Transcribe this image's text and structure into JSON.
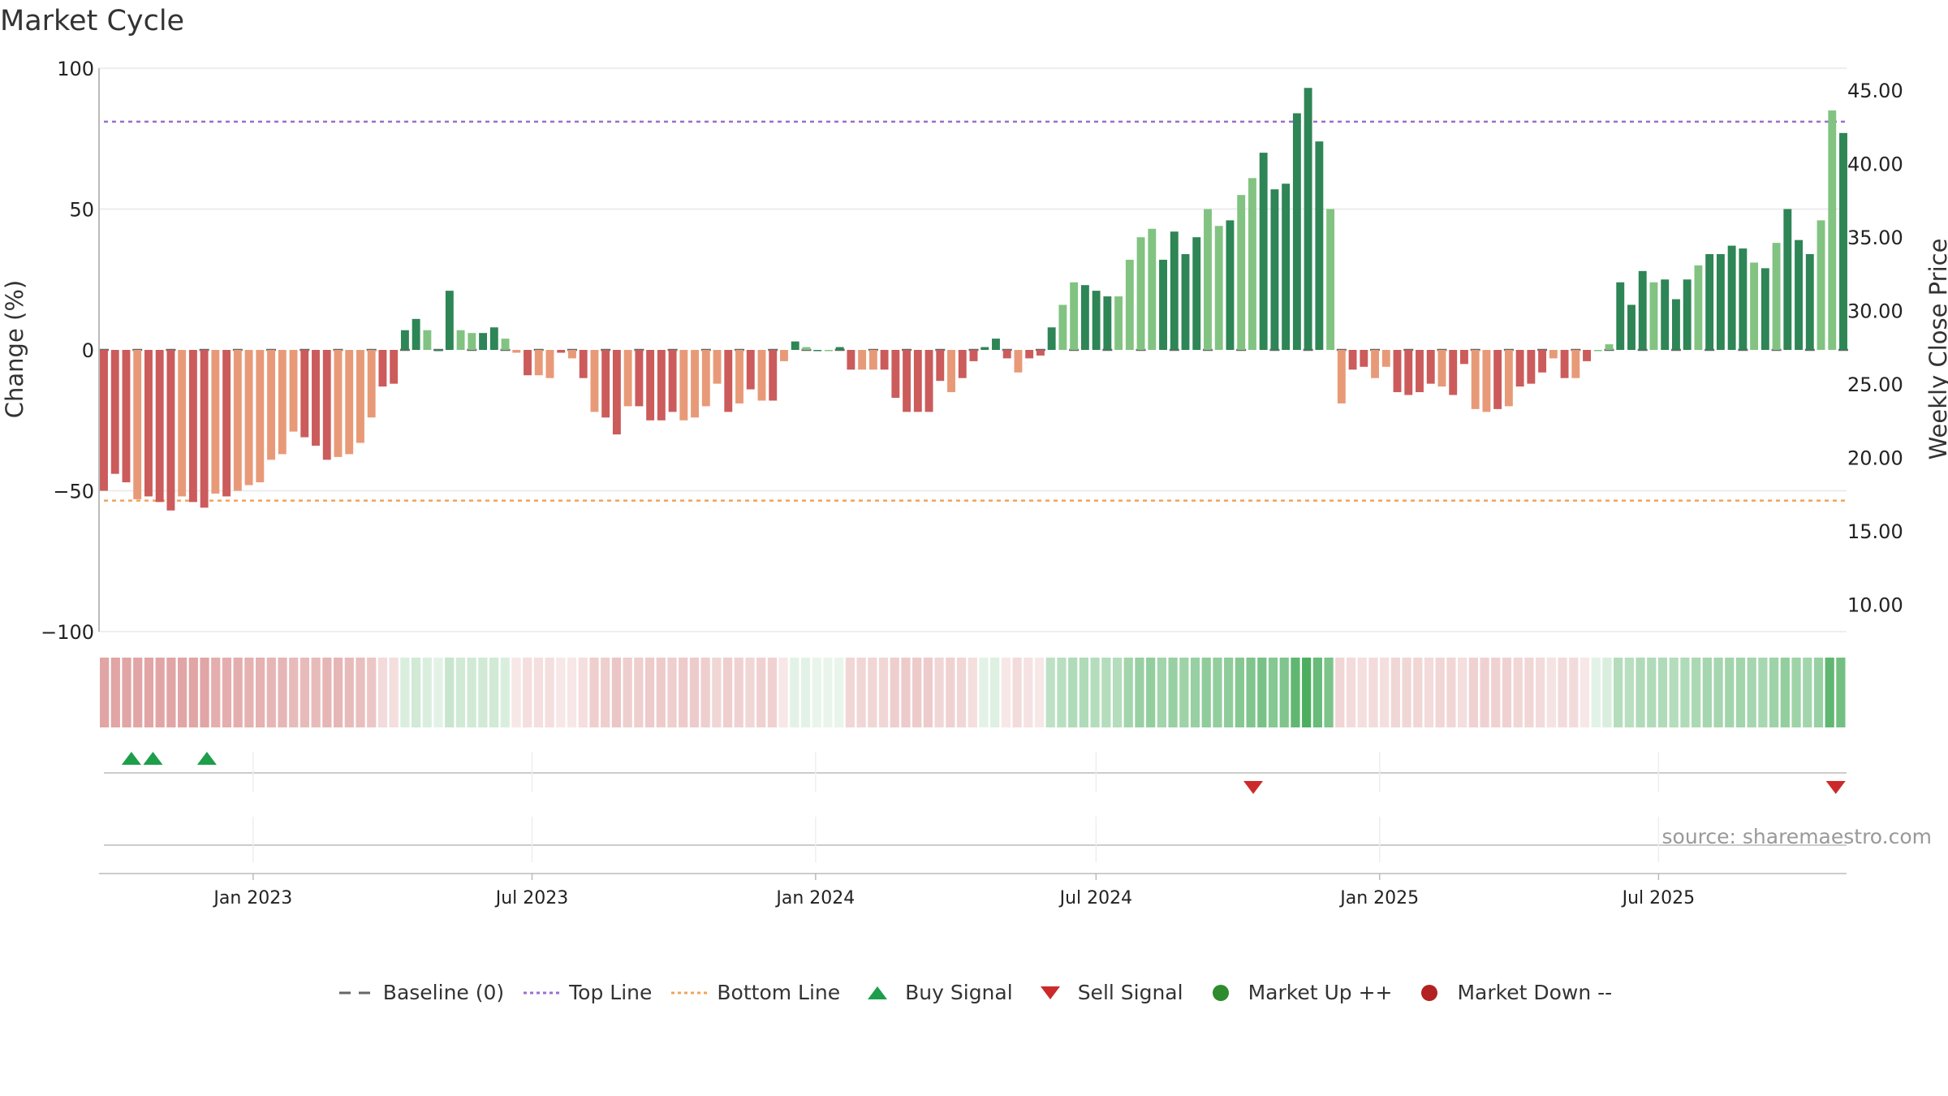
{
  "title": "Market Cycle",
  "source": "source: sharemaestro.com",
  "colors": {
    "up_strong": "#2e8555",
    "up_light": "#82c382",
    "down_strong": "#cc5b5b",
    "down_light": "#e89a78",
    "top_line": "#9b6fcf",
    "bottom_line": "#f0a45a",
    "buy": "#1e9e4a",
    "sell": "#cc2a2a",
    "market_up": "#2e8b2e",
    "market_down": "#b22222",
    "baseline": "#666666"
  },
  "legend": [
    {
      "key": "baseline",
      "label": "Baseline (0)",
      "icon": "dash-line-icon"
    },
    {
      "key": "top_line",
      "label": "Top Line",
      "icon": "dotted-line-icon"
    },
    {
      "key": "bottom_line",
      "label": "Bottom Line",
      "icon": "dotted-line-icon"
    },
    {
      "key": "buy",
      "label": "Buy Signal",
      "icon": "triangle-up-icon"
    },
    {
      "key": "sell",
      "label": "Sell Signal",
      "icon": "triangle-down-icon"
    },
    {
      "key": "market_up",
      "label": "Market Up ++",
      "icon": "circle-icon"
    },
    {
      "key": "market_down",
      "label": "Market Down --",
      "icon": "circle-icon"
    }
  ],
  "chart_data": {
    "type": "bar",
    "title": "Market Cycle",
    "ylabel": "Change (%)",
    "y2label": "Weekly Close Price",
    "ylim": [
      -100,
      100
    ],
    "y2lim": [
      6.5,
      46.0
    ],
    "yticks": [
      "100",
      "50",
      "0",
      "−50",
      "−100"
    ],
    "y2ticks": [
      "45.00",
      "40.00",
      "35.00",
      "30.00",
      "25.00",
      "20.00",
      "15.00",
      "10.00"
    ],
    "top_line": 81,
    "bottom_line": -53.5,
    "x_start": "2022-09-23",
    "x_end": "2025-10-31",
    "xticks": [
      {
        "date": "2023-01-01",
        "label": "Jan 2023"
      },
      {
        "date": "2023-07-01",
        "label": "Jul 2023"
      },
      {
        "date": "2024-01-01",
        "label": "Jan 2024"
      },
      {
        "date": "2024-07-01",
        "label": "Jul 2024"
      },
      {
        "date": "2025-01-01",
        "label": "Jan 2025"
      },
      {
        "date": "2025-07-01",
        "label": "Jul 2025"
      }
    ],
    "grid": true,
    "legend": "bottom",
    "series": [
      {
        "name": "Change (%)",
        "start": "2022-09-23",
        "interval_days": 7,
        "values": [
          -50,
          -44,
          -47,
          -53,
          -52,
          -54,
          -57,
          -52,
          -54,
          -56,
          -51,
          -52,
          -50,
          -48,
          -47,
          -39,
          -37,
          -29,
          -31,
          -34,
          -39,
          -38,
          -37,
          -33,
          -24,
          -13,
          -12,
          7,
          11,
          7,
          0,
          21,
          7,
          6,
          6,
          8,
          4,
          -1,
          -9,
          -9,
          -10,
          -1,
          -3,
          -10,
          -22,
          -24,
          -30,
          -20,
          -20,
          -25,
          -25,
          -22,
          -25,
          -24,
          -20,
          -12,
          -22,
          -19,
          -14,
          -18,
          -18,
          -4,
          3,
          1,
          0,
          0,
          1,
          -7,
          -7,
          -7,
          -7,
          -17,
          -22,
          -22,
          -22,
          -11,
          -15,
          -10,
          -4,
          1,
          4,
          -3,
          -8,
          -3,
          -2,
          8,
          16,
          24,
          23,
          21,
          19,
          19,
          32,
          40,
          43,
          32,
          42,
          34,
          40,
          50,
          44,
          46,
          55,
          61,
          70,
          57,
          59,
          84,
          93,
          74,
          50,
          -19,
          -7,
          -6,
          -10,
          -6,
          -15,
          -16,
          -15,
          -12,
          -13,
          -16,
          -5,
          -21,
          -22,
          -21,
          -20,
          -13,
          -12,
          -8,
          -3,
          -10,
          -10,
          -4,
          0,
          2,
          24,
          16,
          28,
          24,
          25,
          18,
          25,
          30,
          34,
          34,
          37,
          36,
          31,
          29,
          38,
          50,
          39,
          34,
          46,
          85,
          77
        ],
        "colors": "SSSLSSSLSSLSLLLLLLSSSLLLLSSSSLSSLLSSLLSLLSLSLSSLSSSSLLLLSLSLSLSLSLSSLLSSSSSSLSSSSSLSSSLLSSSLLLLSSSSLLSLLSSSSSSLLSSLLSSSSLSSLLSLSSSLSLSLLSSSLSSSLSSSSLSLSSSLLSLLSSSLLSL"
      }
    ],
    "strip_intensity": [
      -0.55,
      -0.55,
      -0.55,
      -0.55,
      -0.55,
      -0.55,
      -0.55,
      -0.55,
      -0.55,
      -0.55,
      -0.5,
      -0.5,
      -0.5,
      -0.48,
      -0.48,
      -0.45,
      -0.45,
      -0.42,
      -0.42,
      -0.42,
      -0.45,
      -0.45,
      -0.42,
      -0.4,
      -0.35,
      -0.22,
      -0.2,
      0.2,
      0.25,
      0.2,
      0.15,
      0.3,
      0.25,
      0.25,
      0.25,
      0.25,
      0.2,
      -0.15,
      -0.2,
      -0.2,
      -0.2,
      -0.15,
      -0.15,
      -0.2,
      -0.3,
      -0.3,
      -0.35,
      -0.3,
      -0.3,
      -0.32,
      -0.32,
      -0.3,
      -0.32,
      -0.32,
      -0.3,
      -0.25,
      -0.3,
      -0.28,
      -0.25,
      -0.28,
      -0.28,
      -0.15,
      0.15,
      0.15,
      0.12,
      0.12,
      0.12,
      -0.25,
      -0.25,
      -0.25,
      -0.25,
      -0.3,
      -0.32,
      -0.32,
      -0.32,
      -0.25,
      -0.28,
      -0.25,
      -0.2,
      0.15,
      0.18,
      -0.15,
      -0.22,
      -0.18,
      -0.15,
      0.35,
      0.38,
      0.42,
      0.42,
      0.4,
      0.4,
      0.4,
      0.5,
      0.55,
      0.58,
      0.5,
      0.55,
      0.52,
      0.55,
      0.6,
      0.58,
      0.6,
      0.65,
      0.68,
      0.72,
      0.65,
      0.68,
      0.85,
      0.95,
      0.8,
      0.7,
      -0.25,
      -0.22,
      -0.2,
      -0.22,
      -0.2,
      -0.25,
      -0.25,
      -0.25,
      -0.22,
      -0.25,
      -0.25,
      -0.2,
      -0.28,
      -0.28,
      -0.28,
      -0.28,
      -0.25,
      -0.25,
      -0.22,
      -0.18,
      -0.22,
      -0.22,
      -0.15,
      0.15,
      0.2,
      0.4,
      0.38,
      0.42,
      0.42,
      0.42,
      0.4,
      0.42,
      0.45,
      0.48,
      0.48,
      0.5,
      0.5,
      0.48,
      0.47,
      0.52,
      0.58,
      0.52,
      0.5,
      0.55,
      0.85,
      0.75
    ],
    "buy_signals": [
      "2022-10-14",
      "2022-10-28",
      "2022-12-02"
    ],
    "sell_signals": [
      "2024-10-11",
      "2025-10-24"
    ]
  }
}
